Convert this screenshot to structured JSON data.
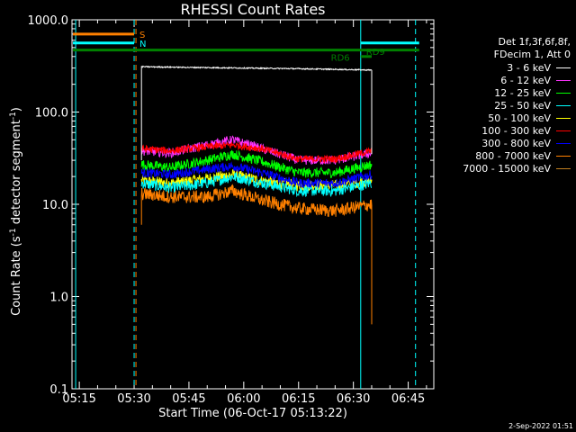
{
  "chart_data": {
    "type": "line",
    "title": "RHESSI Count Rates",
    "xlabel": "Start Time (06-Oct-17 05:13:22)",
    "ylabel": {
      "pre": "Count Rate (s",
      "exp": "-1",
      "mid": " detector segment",
      "exp2": "-1",
      "post": ")"
    },
    "yscale": "log",
    "ylim": [
      0.1,
      1000
    ],
    "y_ticks": [
      "1000.0",
      "100.0",
      "10.0",
      "1.0",
      "0.1"
    ],
    "xlim": [
      "05:13",
      "06:52"
    ],
    "x_ticks": [
      "05:15",
      "05:30",
      "05:45",
      "06:00",
      "06:15",
      "06:30",
      "06:45"
    ],
    "legend": {
      "placement": "right",
      "header": [
        "Det 1f,3f,6f,8f,",
        "FDecim 1, Att 0"
      ]
    },
    "series": [
      {
        "name": "3 - 6 keV",
        "color": "#ffffff",
        "times": [
          "05:32",
          "05:45",
          "06:00",
          "06:15",
          "06:30",
          "06:35"
        ],
        "values": [
          310,
          305,
          300,
          295,
          288,
          285
        ]
      },
      {
        "name": "6 - 12 keV",
        "color": "#ff33ff",
        "times": [
          "05:32",
          "05:40",
          "05:50",
          "05:57",
          "06:05",
          "06:15",
          "06:25",
          "06:35"
        ],
        "values": [
          38,
          36,
          44,
          50,
          40,
          30,
          30,
          36
        ]
      },
      {
        "name": "12 - 25 keV",
        "color": "#00ff00",
        "times": [
          "05:32",
          "05:40",
          "05:50",
          "05:57",
          "06:05",
          "06:15",
          "06:25",
          "06:35"
        ],
        "values": [
          27,
          25,
          30,
          35,
          29,
          22,
          22,
          27
        ]
      },
      {
        "name": "25 - 50 keV",
        "color": "#00ffff",
        "times": [
          "05:32",
          "05:40",
          "05:50",
          "05:57",
          "06:05",
          "06:15",
          "06:25",
          "06:35"
        ],
        "values": [
          17,
          15,
          17,
          20,
          17,
          14,
          14,
          17
        ]
      },
      {
        "name": "50 - 100 keV",
        "color": "#ffff00",
        "times": [
          "05:32",
          "05:40",
          "05:50",
          "05:57",
          "06:05",
          "06:15",
          "06:25",
          "06:35"
        ],
        "values": [
          18,
          17,
          19,
          21,
          18,
          16,
          16,
          18
        ]
      },
      {
        "name": "100 - 300 keV",
        "color": "#ff0000",
        "times": [
          "05:32",
          "05:40",
          "05:50",
          "05:57",
          "06:05",
          "06:15",
          "06:25",
          "06:35"
        ],
        "values": [
          40,
          38,
          42,
          44,
          40,
          31,
          31,
          38
        ]
      },
      {
        "name": "300 - 800 keV",
        "color": "#0000ff",
        "times": [
          "05:32",
          "05:40",
          "05:50",
          "05:57",
          "06:05",
          "06:15",
          "06:25",
          "06:35"
        ],
        "values": [
          22,
          21,
          24,
          26,
          22,
          17,
          17,
          21
        ]
      },
      {
        "name": "800 - 7000 keV",
        "color": "#ff8000",
        "times": [
          "05:32",
          "05:40",
          "05:50",
          "05:57",
          "06:05",
          "06:15",
          "06:25",
          "06:35"
        ],
        "values": [
          13,
          12,
          12,
          14,
          11,
          9,
          8.5,
          10
        ]
      },
      {
        "name": "7000 - 15000 keV",
        "color": "#c08020",
        "times": [],
        "values": []
      }
    ],
    "attenuator_bars": [
      {
        "label": "S",
        "color": "#ff8000",
        "start": "05:13",
        "end": "05:30",
        "value": 700
      },
      {
        "label": "N",
        "color": "#00ffff",
        "start": "05:13",
        "end": "05:30",
        "value": 560
      },
      {
        "label": "RD6",
        "color": "#008000",
        "start": "05:13",
        "end": "06:48",
        "value": 470
      },
      {
        "label": "RD9",
        "color": "#008000",
        "start": "06:32",
        "end": "06:35",
        "value": 400
      },
      {
        "label": "",
        "color": "#00ffff",
        "start": "06:32",
        "end": "06:48",
        "value": 560
      }
    ],
    "vertical_markers": [
      {
        "time": "05:14",
        "color": "#00ffff",
        "style": "solid"
      },
      {
        "time": "05:30",
        "color": "#00ffff",
        "style": "dashed"
      },
      {
        "time": "05:30.5",
        "color": "#ff8000",
        "style": "dashed"
      },
      {
        "time": "06:32",
        "color": "#00ffff",
        "style": "solid"
      },
      {
        "time": "06:47",
        "color": "#00ffff",
        "style": "dashed"
      }
    ],
    "stamp": "2-Sep-2022 01:51"
  }
}
